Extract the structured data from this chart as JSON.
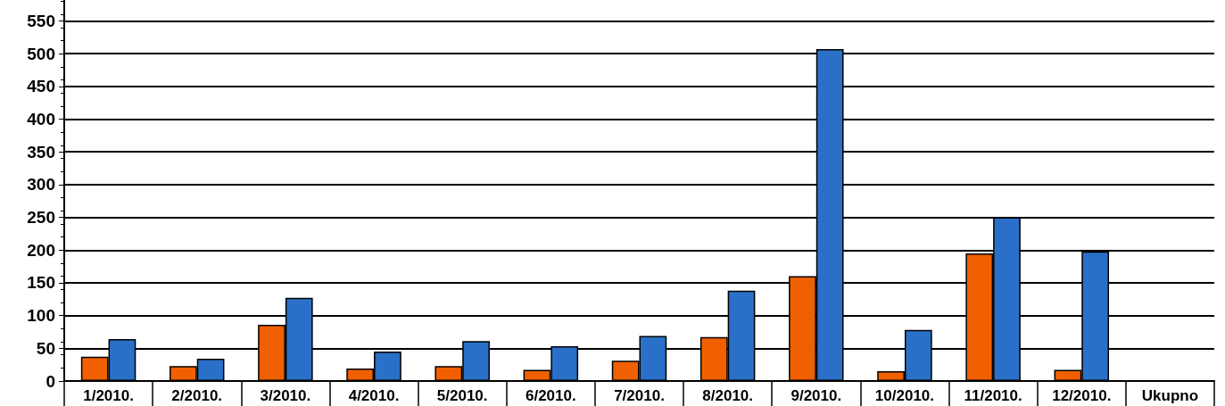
{
  "chart_data": {
    "type": "bar",
    "categories": [
      "1/2010.",
      "2/2010.",
      "3/2010.",
      "4/2010.",
      "5/2010.",
      "6/2010.",
      "7/2010.",
      "8/2010.",
      "9/2010.",
      "10/2010.",
      "11/2010.",
      "12/2010.",
      "Ukupno"
    ],
    "series": [
      {
        "color": "#f06000",
        "values": [
          37,
          23,
          86,
          19,
          23,
          17,
          31,
          67,
          160,
          15,
          195,
          17,
          null
        ]
      },
      {
        "color": "#2a70c8",
        "values": [
          64,
          34,
          127,
          45,
          61,
          53,
          69,
          138,
          507,
          78,
          250,
          198,
          null
        ]
      }
    ],
    "ylim": [
      0,
      582
    ],
    "yticks": [
      0,
      50,
      100,
      150,
      200,
      250,
      300,
      350,
      400,
      450,
      500,
      550
    ],
    "grid": "y"
  }
}
